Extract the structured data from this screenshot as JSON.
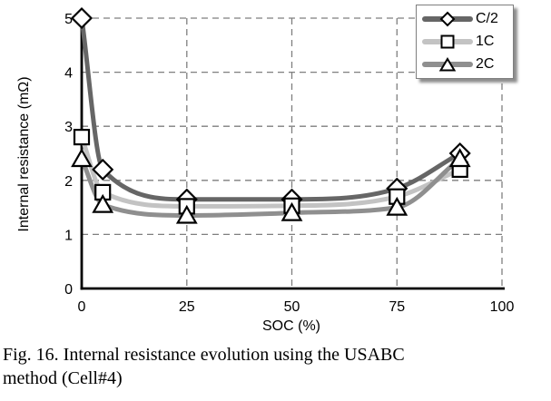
{
  "figure": {
    "caption_line1": "Fig. 16. Internal resistance evolution using the USABC",
    "caption_line2": "method (Cell#4)"
  },
  "chart_data": {
    "type": "line",
    "title": "",
    "xlabel": "SOC (%)",
    "ylabel": "Internal resistance (mΩ)",
    "x": [
      0,
      5,
      25,
      50,
      75,
      90
    ],
    "xlim": [
      0,
      100
    ],
    "ylim": [
      0,
      5
    ],
    "x_ticks": [
      0,
      25,
      50,
      75,
      100
    ],
    "y_ticks": [
      0,
      1,
      2,
      3,
      4,
      5
    ],
    "grid": "dashed-both",
    "grid_color": "#7f7f7f",
    "axis_color": "#000000",
    "marker_fill": "#ffffff",
    "marker_stroke": "#000000",
    "legend_position": "top-right",
    "series": [
      {
        "name": "C/2",
        "marker": "diamond",
        "color": "#666666",
        "values": [
          5.0,
          2.2,
          1.65,
          1.65,
          1.85,
          2.5
        ]
      },
      {
        "name": "1C",
        "marker": "square",
        "color": "#c3c3c3",
        "values": [
          2.8,
          1.78,
          1.52,
          1.53,
          1.7,
          2.2
        ]
      },
      {
        "name": "2C",
        "marker": "triangle",
        "color": "#8f8f8f",
        "values": [
          2.4,
          1.55,
          1.35,
          1.4,
          1.5,
          2.4
        ]
      }
    ]
  }
}
